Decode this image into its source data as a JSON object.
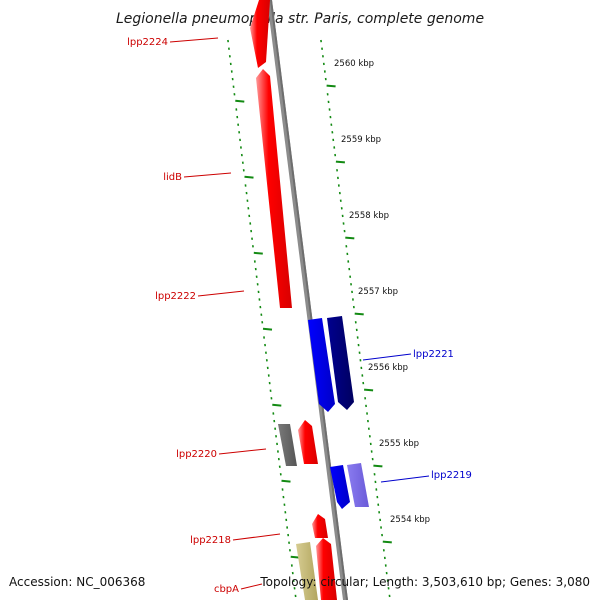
{
  "title": "Legionella pneumophila str. Paris, complete genome",
  "footer": {
    "accession": "Accession: NC_006368",
    "topology": "Topology: circular; Length: 3,503,610 bp; Genes: 3,080"
  },
  "colors": {
    "forward_gene": "#ff0000",
    "reverse_gene": "#0000ff",
    "reverse_gene_dark": "#000080",
    "reverse_gene_light": "#7b68ee",
    "gray_gene": "#696969",
    "khaki_gene": "#c8bc7a",
    "label_red": "#cc0000",
    "label_blue": "#0000cc",
    "backbone": "#8c8c8c",
    "ruler": "#138a13"
  },
  "ticks": [
    {
      "label": "2560 kbp"
    },
    {
      "label": "2559 kbp"
    },
    {
      "label": "2558 kbp"
    },
    {
      "label": "2557 kbp"
    },
    {
      "label": "2556 kbp"
    },
    {
      "label": "2555 kbp"
    },
    {
      "label": "2554 kbp"
    }
  ],
  "gene_labels": [
    {
      "text": "lpp2224",
      "strand": "forward"
    },
    {
      "text": "lidB",
      "strand": "forward"
    },
    {
      "text": "lpp2222",
      "strand": "forward"
    },
    {
      "text": "lpp2221",
      "strand": "reverse"
    },
    {
      "text": "lpp2220",
      "strand": "forward"
    },
    {
      "text": "lpp2219",
      "strand": "reverse"
    },
    {
      "text": "lpp2218",
      "strand": "forward"
    },
    {
      "text": "cbpA",
      "strand": "forward"
    }
  ]
}
